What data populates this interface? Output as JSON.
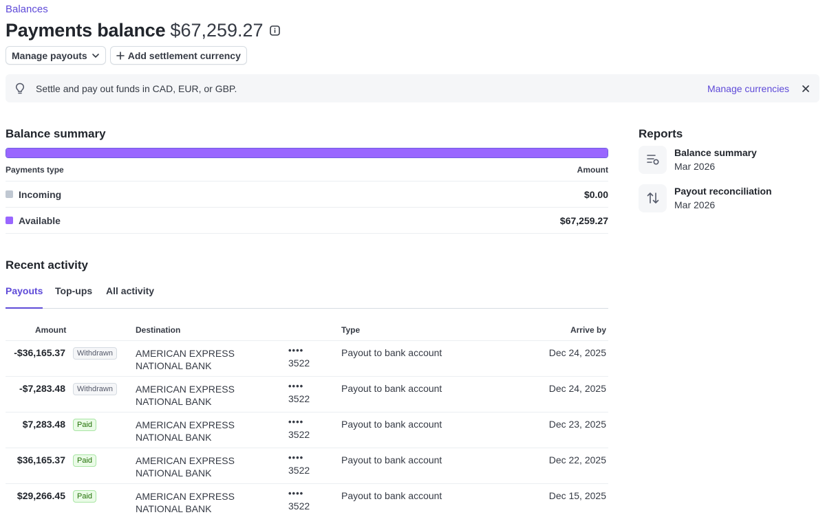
{
  "breadcrumb": "Balances",
  "header": {
    "title": "Payments balance",
    "amount": "$67,259.27"
  },
  "actions": {
    "manage_payouts": "Manage payouts",
    "add_currency": "Add settlement currency"
  },
  "banner": {
    "text": "Settle and pay out funds in CAD, EUR, or GBP.",
    "link": "Manage currencies"
  },
  "balance_summary": {
    "title": "Balance summary",
    "col_type": "Payments type",
    "col_amount": "Amount",
    "available_fraction": 1.0,
    "rows": [
      {
        "label": "Incoming",
        "amount": "$0.00",
        "color": "#c0c8d2"
      },
      {
        "label": "Available",
        "amount": "$67,259.27",
        "color": "#9966ff"
      }
    ]
  },
  "reports": {
    "title": "Reports",
    "items": [
      {
        "title": "Balance summary",
        "period": "Mar 2026",
        "icon": "report-list-icon"
      },
      {
        "title": "Payout reconciliation",
        "period": "Mar 2026",
        "icon": "arrows-updown-icon"
      }
    ]
  },
  "activity": {
    "title": "Recent activity",
    "tabs": [
      "Payouts",
      "Top-ups",
      "All activity"
    ],
    "active_tab": 0,
    "columns": {
      "amount": "Amount",
      "destination": "Destination",
      "type": "Type",
      "arrive_by": "Arrive by"
    },
    "rows": [
      {
        "amount": "-$36,165.37",
        "status": "Withdrawn",
        "destination": "AMERICAN EXPRESS NATIONAL BANK",
        "dots": "••••",
        "last4": "3522",
        "type": "Payout to bank account",
        "arrive": "Dec 24, 2025"
      },
      {
        "amount": "-$7,283.48",
        "status": "Withdrawn",
        "destination": "AMERICAN EXPRESS NATIONAL BANK",
        "dots": "••••",
        "last4": "3522",
        "type": "Payout to bank account",
        "arrive": "Dec 24, 2025"
      },
      {
        "amount": "$7,283.48",
        "status": "Paid",
        "destination": "AMERICAN EXPRESS NATIONAL BANK",
        "dots": "••••",
        "last4": "3522",
        "type": "Payout to bank account",
        "arrive": "Dec 23, 2025"
      },
      {
        "amount": "$36,165.37",
        "status": "Paid",
        "destination": "AMERICAN EXPRESS NATIONAL BANK",
        "dots": "••••",
        "last4": "3522",
        "type": "Payout to bank account",
        "arrive": "Dec 22, 2025"
      },
      {
        "amount": "$29,266.45",
        "status": "Paid",
        "destination": "AMERICAN EXPRESS NATIONAL BANK",
        "dots": "••••",
        "last4": "3522",
        "type": "Payout to bank account",
        "arrive": "Dec 15, 2025"
      }
    ]
  }
}
